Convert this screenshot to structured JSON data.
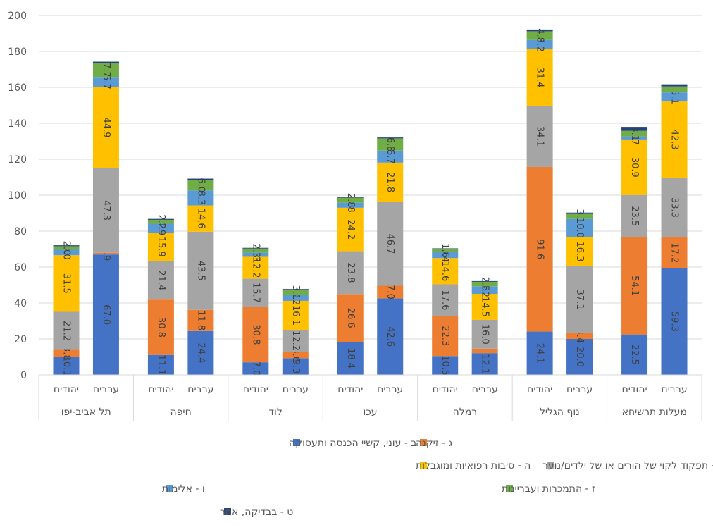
{
  "chart_data": {
    "type": "bar",
    "stacked": true,
    "ylim": [
      0,
      200
    ],
    "yticks": [
      0,
      20,
      40,
      60,
      80,
      100,
      120,
      140,
      160,
      180,
      200
    ],
    "grid": true,
    "legend_position": "bottom",
    "groups": [
      {
        "city": "תל אביב-יפו",
        "categories": [
          "יהודים",
          "ערבים"
        ]
      },
      {
        "city": "חיפה",
        "categories": [
          "יהודים",
          "ערבים"
        ]
      },
      {
        "city": "לוד",
        "categories": [
          "יהודים",
          "ערבים"
        ]
      },
      {
        "city": "עכו",
        "categories": [
          "יהודים",
          "ערבים"
        ]
      },
      {
        "city": "רמלה",
        "categories": [
          "יהודים",
          "ערבים"
        ]
      },
      {
        "city": "נוף הגליל",
        "categories": [
          "יהודים",
          "ערבים"
        ]
      },
      {
        "city": "מעלות תרשיחא",
        "categories": [
          "יהודים",
          "ערבים"
        ]
      }
    ],
    "series": [
      {
        "name": "ב - עוני, קשיי הכנסה ותעסוקה",
        "color": "#4472C4",
        "values": [
          10.1,
          67.0,
          11.1,
          24.4,
          7.0,
          9.3,
          18.4,
          42.6,
          10.5,
          12.1,
          24.1,
          20.0,
          22.5,
          59.3
        ],
        "labels": [
          "10.1",
          "67.0",
          "11.1",
          "24.4",
          "7.0",
          "9.3",
          "18.4",
          "42.6",
          "10.5",
          "12.1",
          "24.1",
          "20.0",
          "22.5",
          "59.3"
        ]
      },
      {
        "name": "ג - זיקנה",
        "color": "#ED7D31",
        "values": [
          3.8,
          0.9,
          30.8,
          11.8,
          30.8,
          3.6,
          26.6,
          7.0,
          22.3,
          2.5,
          91.6,
          3.4,
          54.1,
          17.2
        ],
        "labels": [
          "3.8",
          "0.9",
          "30.8",
          "11.8",
          "30.8",
          "3.6",
          "26.6",
          "7.0",
          "22.3",
          "",
          "91.6",
          "3.4",
          "54.1",
          "17.2"
        ]
      },
      {
        "name": "ד - תפקוד לקוי של הורים או של ילדים/נוער",
        "color": "#A5A5A5",
        "values": [
          21.2,
          47.3,
          21.4,
          43.5,
          15.7,
          12.2,
          23.8,
          46.7,
          17.6,
          16.0,
          34.1,
          37.1,
          23.5,
          33.3
        ],
        "labels": [
          "21.2",
          "47.3",
          "21.4",
          "43.5",
          "15.7",
          "12.2",
          "23.8",
          "46.7",
          "17.6",
          "16.0",
          "34.1",
          "37.1",
          "23.5",
          "33.3"
        ]
      },
      {
        "name": "ה - סיבות רפואיות ומוגבלות",
        "color": "#FFC000",
        "values": [
          31.5,
          44.9,
          15.9,
          14.6,
          12.2,
          16.1,
          24.2,
          21.8,
          14.6,
          14.5,
          31.4,
          16.3,
          30.9,
          42.3
        ],
        "labels": [
          "31.5",
          "44.9",
          "15.9",
          "14.6",
          "12.2",
          "16.1",
          "24.2",
          "21.8",
          "14.6",
          "14.5",
          "31.4",
          "16.3",
          "30.9",
          "42.3"
        ]
      },
      {
        "name": "ו - אלימות",
        "color": "#5B9BD5",
        "values": [
          3.0,
          5.7,
          4.9,
          8.3,
          2.3,
          3.2,
          2.8,
          6.7,
          3.4,
          4.2,
          5.2,
          10.0,
          1.7,
          5.1
        ],
        "labels": [
          "3.0",
          "5.7",
          "4.9",
          "8.3",
          "2.3",
          "3.2",
          "2.8",
          "6.7",
          "3.4",
          "4.2",
          "5.2",
          "10.0",
          "1.7",
          "5.1"
        ]
      },
      {
        "name": "ז - התמכרות ועבריינות",
        "color": "#70AD47",
        "values": [
          2.0,
          7.7,
          2.2,
          6.0,
          2.3,
          3.1,
          2.8,
          6.8,
          1.6,
          2.5,
          4.8,
          3.1,
          3.1,
          3.3
        ],
        "labels": [
          "2.0",
          "7.7",
          "2.2",
          "6.0",
          "2.3",
          "3.1",
          "2.8",
          "6.8",
          "1.6",
          "2.5",
          "4.8",
          "3.1",
          "3.1",
          ""
        ]
      },
      {
        "name": "ט - בבדיקה, אחר",
        "color": "#264478",
        "values": [
          0.5,
          0.8,
          0.5,
          0.6,
          0.4,
          0.3,
          0.4,
          0.5,
          0.4,
          0.4,
          1.0,
          0.4,
          2.2,
          1.2
        ],
        "labels": [
          "",
          "",
          "",
          "",
          "",
          "",
          "",
          "",
          "",
          "",
          "",
          "",
          "",
          ""
        ]
      }
    ]
  }
}
